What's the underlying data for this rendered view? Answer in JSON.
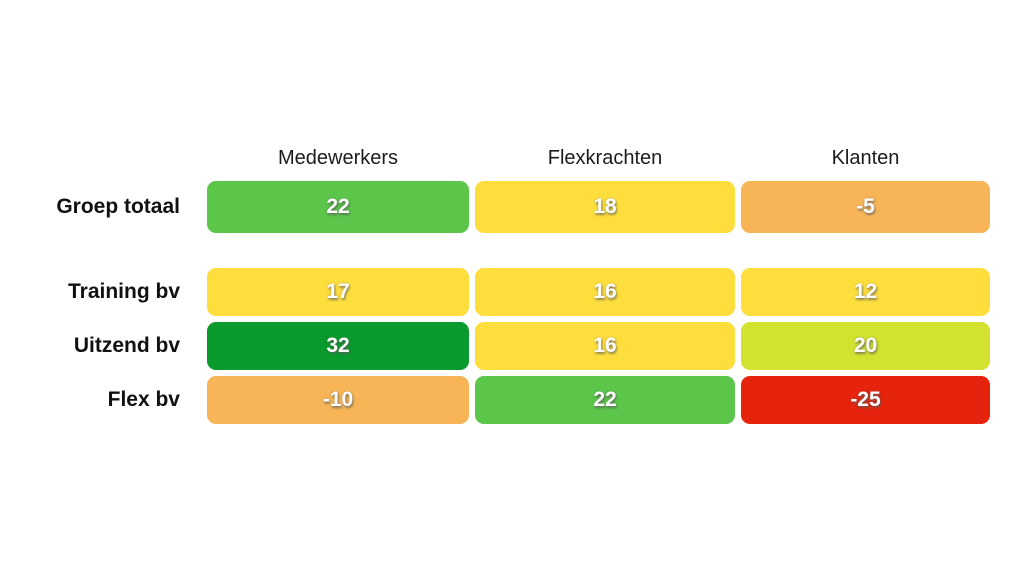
{
  "chart_data": {
    "type": "heatmap",
    "title": "",
    "columns": [
      "Medewerkers",
      "Flexkrachten",
      "Klanten"
    ],
    "rows": [
      {
        "label": "Groep totaal",
        "values": [
          22,
          18,
          -5
        ],
        "colors": [
          "#5BC64A",
          "#FDDE3D",
          "#F7B557"
        ]
      },
      {
        "label": "Training bv",
        "values": [
          17,
          16,
          12
        ],
        "colors": [
          "#FDDE3D",
          "#FDDE3D",
          "#FDDE3D"
        ]
      },
      {
        "label": "Uitzend bv",
        "values": [
          32,
          16,
          20
        ],
        "colors": [
          "#0A9A2D",
          "#FDDE3D",
          "#D2E22F"
        ]
      },
      {
        "label": "Flex bv",
        "values": [
          -10,
          22,
          -25
        ],
        "colors": [
          "#F7B557",
          "#5BC64A",
          "#E6230C"
        ]
      }
    ],
    "layout": {
      "background": "#FFFFFF",
      "value_text_color": "#FFFFFF",
      "label_text_color": "#111111",
      "legend": "none",
      "grid": "off"
    },
    "palette": {
      "dark_green": "#0A9A2D",
      "green": "#5BC64A",
      "lime": "#D2E22F",
      "yellow": "#FDDE3D",
      "orange": "#F7B557",
      "red": "#E6230C"
    }
  }
}
